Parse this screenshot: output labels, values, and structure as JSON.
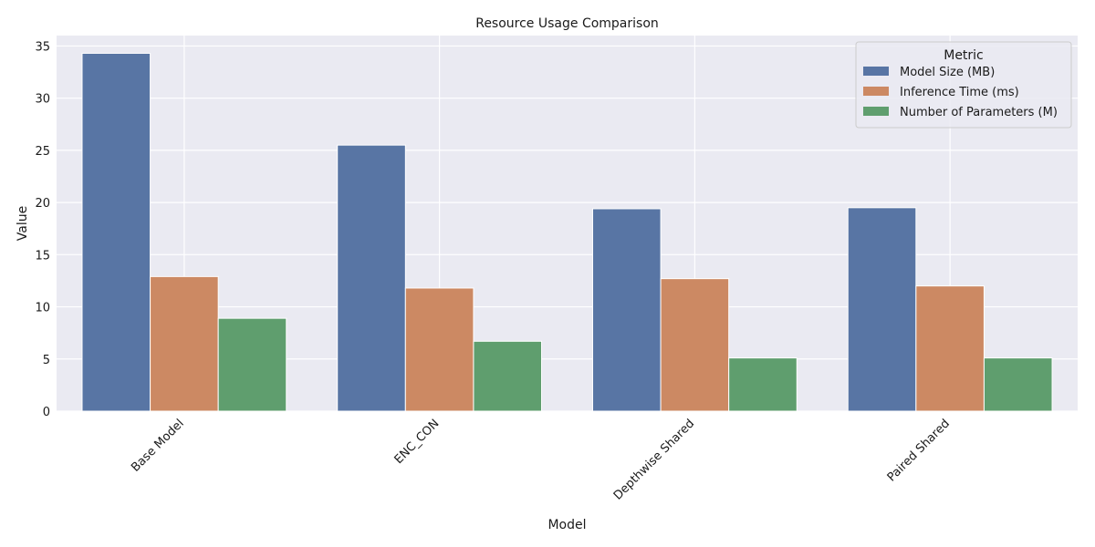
{
  "chart_data": {
    "type": "bar",
    "title": "Resource Usage Comparison",
    "xlabel": "Model",
    "ylabel": "Value",
    "categories": [
      "Base Model",
      "ENC_CON",
      "Depthwise Shared",
      "Paired Shared"
    ],
    "series": [
      {
        "name": "Model Size (MB)",
        "color": "#5875a4",
        "values": [
          34.3,
          25.5,
          19.4,
          19.5
        ]
      },
      {
        "name": "Inference Time (ms)",
        "color": "#cc8963",
        "values": [
          12.9,
          11.8,
          12.7,
          12.0
        ]
      },
      {
        "name": "Number of Parameters (M)",
        "color": "#5f9e6e",
        "values": [
          8.9,
          6.7,
          5.1,
          5.1
        ]
      }
    ],
    "ylim": [
      0,
      36
    ],
    "yticks": [
      0,
      5,
      10,
      15,
      20,
      25,
      30,
      35
    ],
    "legend_title": "Metric",
    "legend_position": "top-right",
    "grid": true,
    "background": "#eaeaf2",
    "grid_color": "#ffffff"
  }
}
